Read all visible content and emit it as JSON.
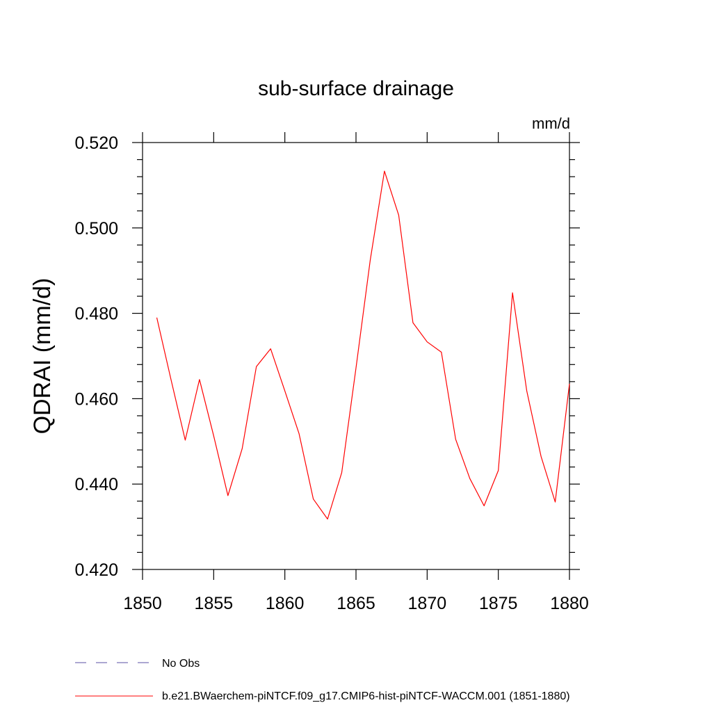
{
  "chart_data": {
    "type": "line",
    "title": "sub-surface drainage",
    "units": "mm/d",
    "ylabel": "QDRAI  (mm/d)",
    "xlabel": "",
    "xlim": [
      1850,
      1880
    ],
    "ylim": [
      0.42,
      0.52
    ],
    "x_ticks": [
      1850,
      1855,
      1860,
      1865,
      1870,
      1875,
      1880
    ],
    "x_tick_labels": [
      "1850",
      "1855",
      "1860",
      "1865",
      "1870",
      "1875",
      "1880"
    ],
    "y_ticks": [
      0.42,
      0.44,
      0.46,
      0.48,
      0.5,
      0.52
    ],
    "y_tick_labels": [
      "0.420",
      "0.440",
      "0.460",
      "0.480",
      "0.500",
      "0.520"
    ],
    "grid": false,
    "legend_position": "bottom-left",
    "series": [
      {
        "name": "b.e21.BWaerchem-piNTCF.f09_g17.CMIP6-hist-piNTCF-WACCM.001 (1851-1880)",
        "color": "#ff0000",
        "style": "solid",
        "x": [
          1851,
          1852,
          1853,
          1854,
          1855,
          1856,
          1857,
          1858,
          1859,
          1860,
          1861,
          1862,
          1863,
          1864,
          1865,
          1866,
          1867,
          1868,
          1869,
          1870,
          1871,
          1872,
          1873,
          1874,
          1875,
          1876,
          1877,
          1878,
          1879,
          1880
        ],
        "values": [
          0.479,
          0.4645,
          0.4503,
          0.4645,
          0.4513,
          0.4373,
          0.4483,
          0.4675,
          0.4717,
          0.4618,
          0.4518,
          0.4365,
          0.4318,
          0.4427,
          0.4672,
          0.4925,
          0.5133,
          0.503,
          0.4778,
          0.4733,
          0.4709,
          0.4505,
          0.4413,
          0.4349,
          0.4432,
          0.4848,
          0.4618,
          0.4465,
          0.4358,
          0.4635
        ]
      }
    ],
    "legend_entries": [
      {
        "label": "No Obs",
        "color": "#5a4fa6",
        "style": "dashed"
      },
      {
        "label": "b.e21.BWaerchem-piNTCF.f09_g17.CMIP6-hist-piNTCF-WACCM.001 (1851-1880)",
        "color": "#ff0000",
        "style": "solid"
      }
    ]
  }
}
